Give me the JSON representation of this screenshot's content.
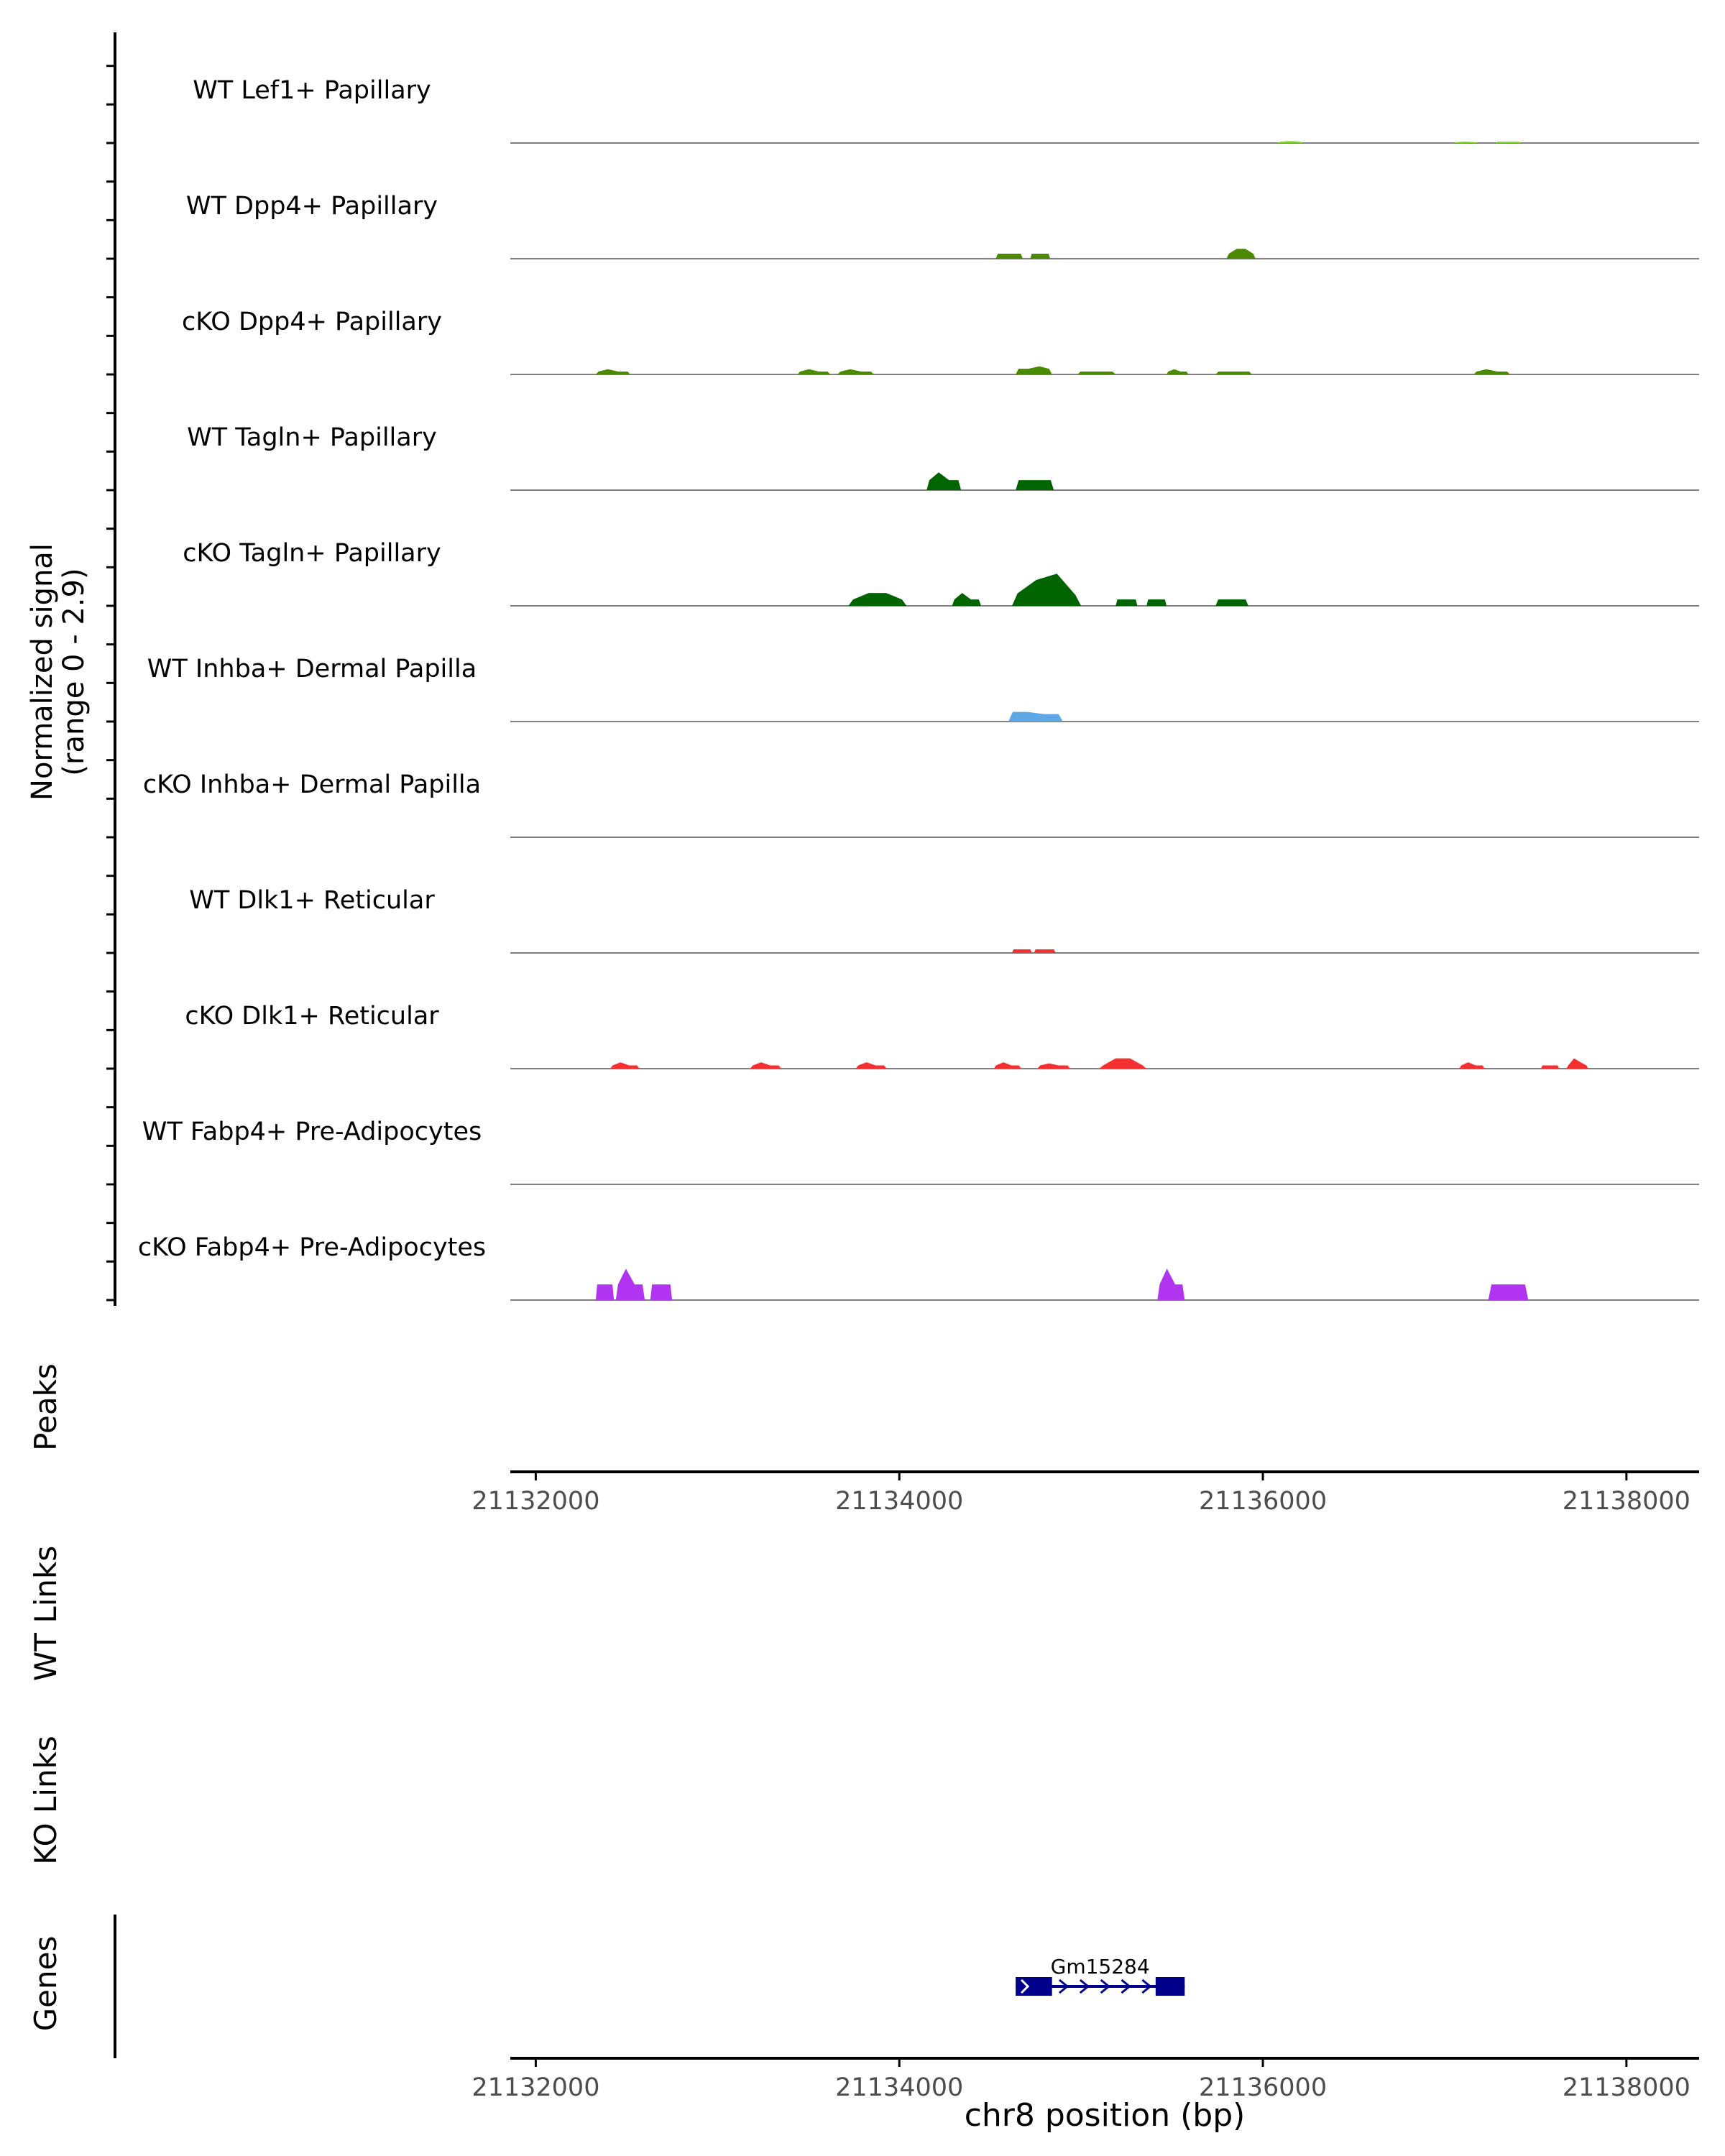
{
  "chart_data": {
    "type": "area",
    "region": "chr8:21131860-21138400",
    "signal_axis_label": [
      "Normalized signal",
      "(range 0 - 2.9)"
    ],
    "signal_range": [
      0,
      2.9
    ],
    "xlim": [
      21131860,
      21138400
    ],
    "tracks": [
      {
        "name": "WT Lef1+ Papillary",
        "color": "#76d41a",
        "peaks": [
          {
            "start": 21136080,
            "end": 21136220,
            "shape": [
              0.06,
              0.1,
              0.1,
              0.06
            ]
          },
          {
            "start": 21137050,
            "end": 21137180,
            "shape": [
              0.04,
              0.07,
              0.07,
              0.04
            ]
          },
          {
            "start": 21137280,
            "end": 21137420,
            "shape": [
              0.07,
              0.07,
              0.07,
              0.07
            ]
          }
        ]
      },
      {
        "name": "WT Dpp4+ Papillary",
        "color": "#4a8a00",
        "peaks": [
          {
            "start": 21134530,
            "end": 21134680,
            "shape": [
              0.28,
              0.28,
              0.28,
              0.28
            ]
          },
          {
            "start": 21134720,
            "end": 21134830,
            "shape": [
              0.28,
              0.28,
              0.28,
              0.28
            ]
          },
          {
            "start": 21135800,
            "end": 21135960,
            "shape": [
              0.28,
              0.55,
              0.55,
              0.28
            ]
          }
        ]
      },
      {
        "name": "cKO Dpp4+ Papillary",
        "color": "#4a8a00",
        "peaks": [
          {
            "start": 21132330,
            "end": 21132520,
            "shape": [
              0.16,
              0.29,
              0.16,
              0.16
            ]
          },
          {
            "start": 21133440,
            "end": 21133620,
            "shape": [
              0.16,
              0.29,
              0.16,
              0.16
            ]
          },
          {
            "start": 21133660,
            "end": 21133860,
            "shape": [
              0.16,
              0.29,
              0.16,
              0.16
            ]
          },
          {
            "start": 21134640,
            "end": 21134840,
            "shape": [
              0.32,
              0.32,
              0.45,
              0.32
            ]
          },
          {
            "start": 21134980,
            "end": 21135190,
            "shape": [
              0.16,
              0.16,
              0.16,
              0.16
            ]
          },
          {
            "start": 21135470,
            "end": 21135590,
            "shape": [
              0.16,
              0.29,
              0.16,
              0.16
            ]
          },
          {
            "start": 21135740,
            "end": 21135940,
            "shape": [
              0.16,
              0.16,
              0.16,
              0.16
            ]
          },
          {
            "start": 21137160,
            "end": 21137360,
            "shape": [
              0.16,
              0.29,
              0.16,
              0.16
            ]
          }
        ]
      },
      {
        "name": "WT Tagln+ Papillary",
        "color": "#006400",
        "peaks": [
          {
            "start": 21134150,
            "end": 21134340,
            "shape": [
              0.56,
              1.0,
              0.56,
              0.56
            ]
          },
          {
            "start": 21134640,
            "end": 21134850,
            "shape": [
              0.56,
              0.56,
              0.56,
              0.56
            ]
          }
        ]
      },
      {
        "name": "cKO Tagln+ Papillary",
        "color": "#006400",
        "peaks": [
          {
            "start": 21133720,
            "end": 21134040,
            "shape": [
              0.36,
              0.72,
              0.72,
              0.36
            ]
          },
          {
            "start": 21134290,
            "end": 21134450,
            "shape": [
              0.36,
              0.72,
              0.36,
              0.36
            ]
          },
          {
            "start": 21134620,
            "end": 21135000,
            "shape": [
              0.7,
              1.45,
              1.8,
              0.6
            ]
          },
          {
            "start": 21135190,
            "end": 21135310,
            "shape": [
              0.36,
              0.36,
              0.36,
              0.36
            ]
          },
          {
            "start": 21135360,
            "end": 21135470,
            "shape": [
              0.36,
              0.36,
              0.36,
              0.36
            ]
          },
          {
            "start": 21135740,
            "end": 21135920,
            "shape": [
              0.36,
              0.36,
              0.36,
              0.36
            ]
          }
        ]
      },
      {
        "name": "WT Inhba+ Dermal Papilla",
        "color": "#5fa8e8",
        "peaks": [
          {
            "start": 21134600,
            "end": 21134900,
            "shape": [
              0.54,
              0.54,
              0.42,
              0.42
            ]
          }
        ]
      },
      {
        "name": "cKO Inhba+ Dermal Papilla",
        "color": "#5fa8e8",
        "peaks": []
      },
      {
        "name": "WT Dlk1+ Reticular",
        "color": "#f53030",
        "peaks": [
          {
            "start": 21134620,
            "end": 21134730,
            "shape": [
              0.2,
              0.2,
              0.2,
              0.2
            ]
          },
          {
            "start": 21134740,
            "end": 21134860,
            "shape": [
              0.2,
              0.2,
              0.2,
              0.2
            ]
          }
        ]
      },
      {
        "name": "cKO Dlk1+ Reticular",
        "color": "#f53030",
        "peaks": [
          {
            "start": 21132410,
            "end": 21132570,
            "shape": [
              0.18,
              0.36,
              0.18,
              0.18
            ]
          },
          {
            "start": 21133180,
            "end": 21133350,
            "shape": [
              0.18,
              0.36,
              0.18,
              0.18
            ]
          },
          {
            "start": 21133760,
            "end": 21133930,
            "shape": [
              0.18,
              0.36,
              0.18,
              0.18
            ]
          },
          {
            "start": 21134520,
            "end": 21134670,
            "shape": [
              0.18,
              0.36,
              0.18,
              0.18
            ]
          },
          {
            "start": 21134760,
            "end": 21134940,
            "shape": [
              0.18,
              0.3,
              0.18,
              0.18
            ]
          },
          {
            "start": 21135100,
            "end": 21135360,
            "shape": [
              0.18,
              0.58,
              0.58,
              0.18
            ]
          },
          {
            "start": 21137080,
            "end": 21137220,
            "shape": [
              0.18,
              0.36,
              0.18,
              0.18
            ]
          },
          {
            "start": 21137530,
            "end": 21137630,
            "shape": [
              0.18,
              0.18,
              0.18,
              0.18
            ]
          },
          {
            "start": 21137670,
            "end": 21137790,
            "shape": [
              0.18,
              0.58,
              0.36,
              0.18
            ]
          }
        ]
      },
      {
        "name": "WT Fabp4+ Pre-Adipocytes",
        "color": "#b034f0",
        "peaks": []
      },
      {
        "name": "cKO Fabp4+ Pre-Adipocytes",
        "color": "#b034f0",
        "peaks": [
          {
            "start": 21132330,
            "end": 21132430,
            "shape": [
              0.88,
              0.88,
              0.88,
              0.88
            ]
          },
          {
            "start": 21132440,
            "end": 21132600,
            "shape": [
              0.88,
              1.76,
              0.88,
              0.88
            ]
          },
          {
            "start": 21132630,
            "end": 21132750,
            "shape": [
              0.88,
              0.88,
              0.88,
              0.88
            ]
          },
          {
            "start": 21135420,
            "end": 21135570,
            "shape": [
              0.88,
              1.76,
              0.88,
              0.88
            ]
          },
          {
            "start": 21137240,
            "end": 21137460,
            "shape": [
              0.88,
              0.88,
              0.88,
              0.88
            ]
          }
        ]
      }
    ],
    "xticks": [
      21132000,
      21134000,
      21136000,
      21138000
    ],
    "xlabel": "chr8 position (bp)",
    "panels": [
      "Peaks",
      "WT Links",
      "KO Links",
      "Genes"
    ],
    "genes": [
      {
        "name": "Gm15284",
        "start": 21134640,
        "end": 21135570,
        "strand": "+",
        "exons": [
          [
            21134640,
            21134840
          ],
          [
            21135410,
            21135570
          ]
        ]
      }
    ]
  },
  "colors": {
    "baseline": "#808080",
    "axis": "#000000",
    "gene": "#00008b",
    "tick_text": "#4d4d4d"
  }
}
